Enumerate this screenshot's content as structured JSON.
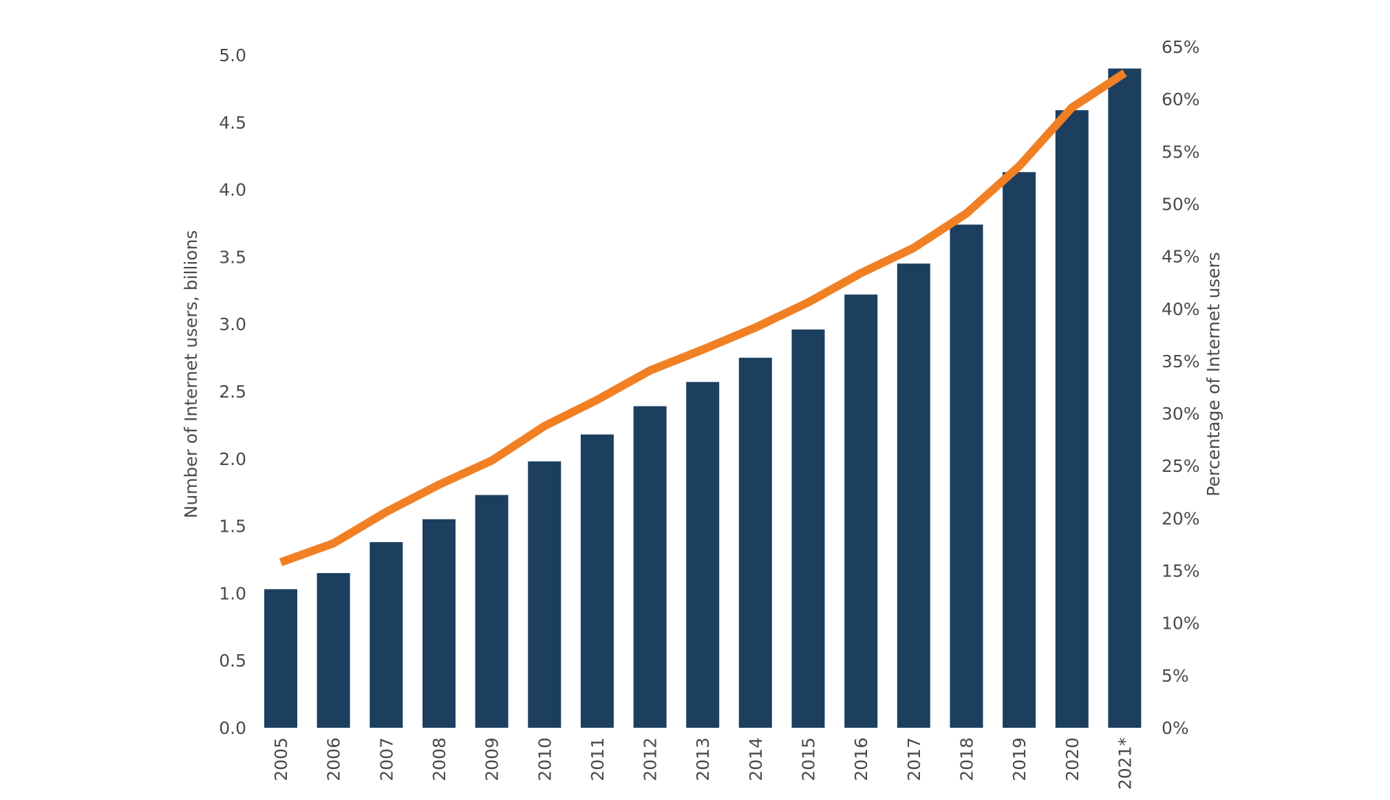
{
  "chart_data": {
    "type": "bar",
    "categories": [
      "2005",
      "2006",
      "2007",
      "2008",
      "2009",
      "2010",
      "2011",
      "2012",
      "2013",
      "2014",
      "2015",
      "2016",
      "2017",
      "2018",
      "2019",
      "2020",
      "2021*"
    ],
    "series": [
      {
        "type": "bar",
        "axis": "left",
        "color": "#1c3f60",
        "values": [
          1.03,
          1.15,
          1.38,
          1.55,
          1.73,
          1.98,
          2.18,
          2.39,
          2.57,
          2.75,
          2.96,
          3.22,
          3.45,
          3.74,
          4.13,
          4.59,
          4.9
        ]
      },
      {
        "type": "line",
        "axis": "right",
        "color": "#f18024",
        "values": [
          15.8,
          17.6,
          20.6,
          23.2,
          25.5,
          28.8,
          31.3,
          34.1,
          36.1,
          38.2,
          40.6,
          43.4,
          45.8,
          49.1,
          53.6,
          59.2,
          62.5
        ]
      }
    ],
    "y_left": {
      "label": "Number of Internet users, billions",
      "range": [
        0,
        5
      ],
      "ticks": [
        "0.0",
        "0.5",
        "1.0",
        "1.5",
        "2.0",
        "2.5",
        "3.0",
        "3.5",
        "4.0",
        "4.5",
        "5.0"
      ]
    },
    "y_right": {
      "label": "Percentage of Internet users",
      "range": [
        0,
        65
      ],
      "ticks": [
        "0%",
        "5%",
        "10%",
        "15%",
        "20%",
        "25%",
        "30%",
        "35%",
        "40%",
        "45%",
        "50%",
        "55%",
        "60%",
        "65%"
      ]
    },
    "xlabel": "",
    "grid": false,
    "legend": "none"
  }
}
